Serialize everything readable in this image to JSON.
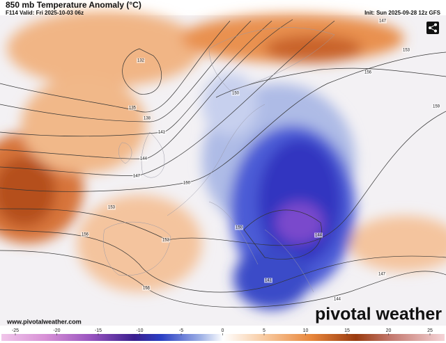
{
  "header": {
    "title": "850 mb Temperature Anomaly (°C)",
    "valid": "F114 Valid: Fri 2025-10-03 06z",
    "init": "Init: Sun 2025-09-28 12z GFS"
  },
  "footer": {
    "website": "www.pivotalweather.com",
    "brand": "pivotal weather"
  },
  "contour_labels": [
    132,
    135,
    138,
    141,
    144,
    147,
    150,
    153,
    153,
    156,
    156,
    150,
    153,
    156,
    159,
    147,
    147,
    144,
    141,
    144,
    150
  ],
  "colorbar": {
    "ticks": [
      -25,
      -20,
      -15,
      -10,
      -5,
      0,
      5,
      10,
      15,
      20,
      25
    ]
  }
}
